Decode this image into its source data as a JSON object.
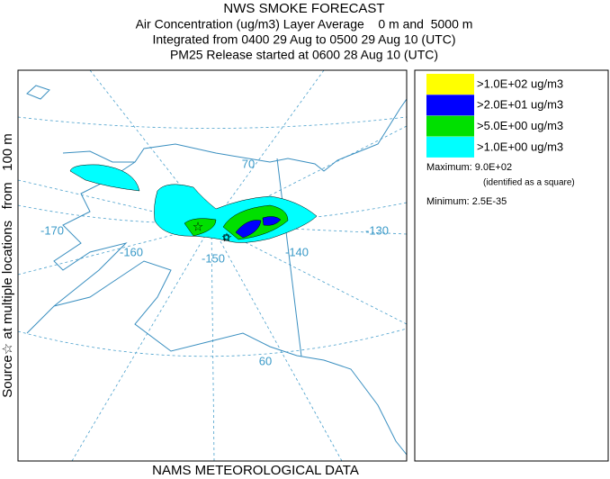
{
  "header": {
    "title": "NWS SMOKE FORECAST",
    "lines": [
      "Air Concentration (ug/m3) Layer Average    0 m and  5000 m",
      "Integrated from 0400 29 Aug to 0500 29 Aug 10 (UTC)",
      "PM25 Release started at 0600 28 Aug 10 (UTC)"
    ]
  },
  "side_label": "Source☆ at multiple locations   from   100 m",
  "footer": "NAMS METEOROLOGICAL DATA",
  "map": {
    "labels": [
      "-170",
      "-160",
      "-150",
      "-140",
      "-130",
      "70",
      "60"
    ]
  },
  "legend": {
    "items": [
      {
        "color": "#ffff00",
        "label": ">1.0E+02 ug/m3"
      },
      {
        "color": "#0000ff",
        "label": ">2.0E+01 ug/m3"
      },
      {
        "color": "#00e000",
        "label": ">5.0E+00 ug/m3"
      },
      {
        "color": "#00ffff",
        "label": ">1.0E+00 ug/m3"
      }
    ],
    "maximum": "Maximum: 9.0E+02",
    "maximum_note": "(identified as a square)",
    "minimum": "Minimum: 2.5E-35"
  }
}
